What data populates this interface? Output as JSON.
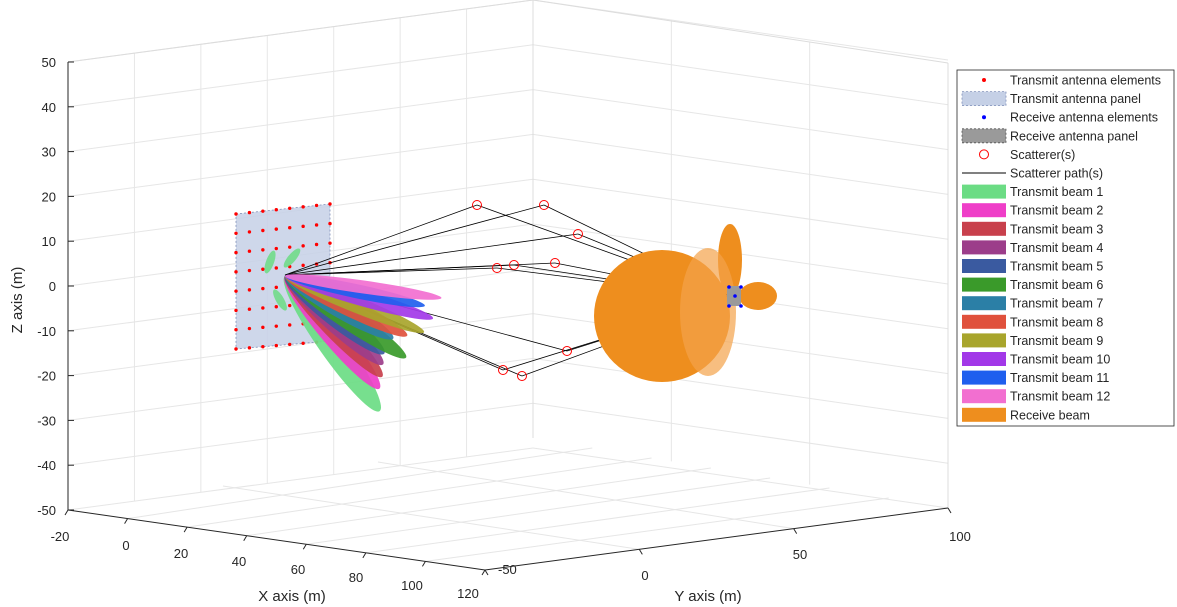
{
  "chart_data": {
    "type": "scatter",
    "xlabel": "X axis (m)",
    "ylabel": "Y axis (m)",
    "zlabel": "Z axis (m)",
    "xlim": [
      -20,
      120
    ],
    "ylim": [
      -50,
      100
    ],
    "zlim": [
      -50,
      50
    ],
    "grid": true,
    "legend_position": "top-right",
    "x_ticks": [
      "-20",
      "0",
      "20",
      "40",
      "60",
      "80",
      "100",
      "120"
    ],
    "y_ticks": [
      "-50",
      "0",
      "50",
      "100"
    ],
    "z_ticks": [
      "50",
      "40",
      "30",
      "20",
      "10",
      "0",
      "-10",
      "-20",
      "-30",
      "-40",
      "-50"
    ],
    "legend": [
      {
        "label": "Transmit antenna elements",
        "kind": "dot",
        "color": "#ff0000"
      },
      {
        "label": "Transmit antenna panel",
        "kind": "panel",
        "color": "#c5d0e6"
      },
      {
        "label": "Receive antenna elements",
        "kind": "dot",
        "color": "#0000ff"
      },
      {
        "label": "Receive antenna panel",
        "kind": "panel-dark",
        "color": "#9a9a9a"
      },
      {
        "label": "Scatterer(s)",
        "kind": "circle",
        "color": "#ff0000"
      },
      {
        "label": "Scatterer path(s)",
        "kind": "line",
        "color": "#000000"
      },
      {
        "label": "Transmit beam 1",
        "kind": "patch",
        "color": "#6bdc84"
      },
      {
        "label": "Transmit beam 2",
        "kind": "patch",
        "color": "#ef3ec8"
      },
      {
        "label": "Transmit beam 3",
        "kind": "patch",
        "color": "#c8404c"
      },
      {
        "label": "Transmit beam 4",
        "kind": "patch",
        "color": "#9c3d8a"
      },
      {
        "label": "Transmit beam 5",
        "kind": "patch",
        "color": "#3a5aa0"
      },
      {
        "label": "Transmit beam 6",
        "kind": "patch",
        "color": "#3a9a2a"
      },
      {
        "label": "Transmit beam 7",
        "kind": "patch",
        "color": "#2b7fa6"
      },
      {
        "label": "Transmit beam 8",
        "kind": "patch",
        "color": "#e0513c"
      },
      {
        "label": "Transmit beam 9",
        "kind": "patch",
        "color": "#a8a52c"
      },
      {
        "label": "Transmit beam 10",
        "kind": "patch",
        "color": "#a238e8"
      },
      {
        "label": "Transmit beam 11",
        "kind": "patch",
        "color": "#1f5fee"
      },
      {
        "label": "Transmit beam 12",
        "kind": "patch",
        "color": "#f26fd0"
      },
      {
        "label": "Receive beam",
        "kind": "patch",
        "color": "#ee8e1e"
      }
    ]
  }
}
